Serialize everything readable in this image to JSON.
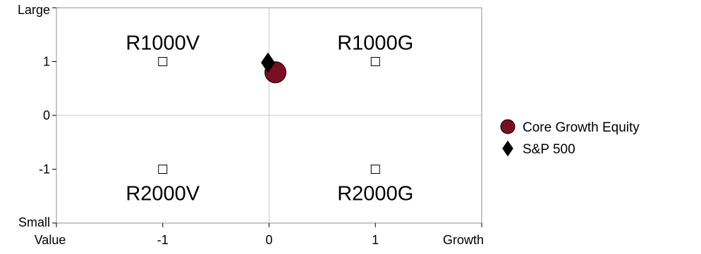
{
  "chart_data": {
    "type": "scatter",
    "title": "",
    "xlabel": "",
    "ylabel": "",
    "xlim": [
      -2,
      2
    ],
    "ylim": [
      -2,
      2
    ],
    "x_ticks": [
      {
        "value": -2,
        "label": "Value"
      },
      {
        "value": -1,
        "label": "-1"
      },
      {
        "value": 0,
        "label": "0"
      },
      {
        "value": 1,
        "label": "1"
      },
      {
        "value": 2,
        "label": "Growth"
      }
    ],
    "y_ticks": [
      {
        "value": 2,
        "label": "Large"
      },
      {
        "value": 1,
        "label": "1"
      },
      {
        "value": 0,
        "label": "0"
      },
      {
        "value": -1,
        "label": "-1"
      },
      {
        "value": -2,
        "label": "Small"
      }
    ],
    "grid": "zero-lines",
    "legend_position": "right",
    "quadrants": [
      {
        "label": "R1000V",
        "x": -1,
        "y": 1,
        "label_side": "above"
      },
      {
        "label": "R1000G",
        "x": 1,
        "y": 1,
        "label_side": "above"
      },
      {
        "label": "R2000V",
        "x": -1,
        "y": -1,
        "label_side": "below"
      },
      {
        "label": "R2000G",
        "x": 1,
        "y": -1,
        "label_side": "below"
      }
    ],
    "series": [
      {
        "name": "Core Growth Equity",
        "marker": "circle",
        "color": "#7a0f22",
        "x": 0.06,
        "y": 0.8
      },
      {
        "name": "S&P 500",
        "marker": "diamond",
        "color": "#000000",
        "x": -0.01,
        "y": 0.98
      }
    ]
  }
}
